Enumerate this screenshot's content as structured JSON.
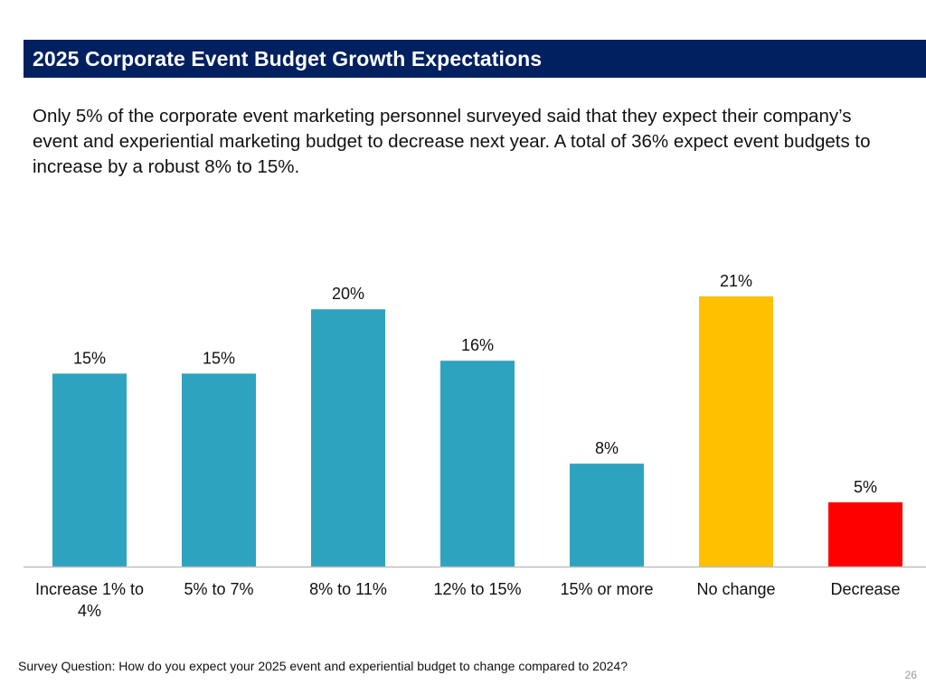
{
  "slide": {
    "title": "2025 Corporate Event Budget Growth Expectations",
    "body": "Only 5% of the corporate event marketing personnel surveyed said that they expect their company’s event and experiential marketing budget to decrease next year. A total of 36% expect event budgets to increase by a robust 8% to 15%.",
    "footnote": "Survey Question: How do you expect your 2025 event and experiential budget to change compared to 2024?",
    "page_number": "26"
  },
  "chart_data": {
    "type": "bar",
    "title": "",
    "xlabel": "",
    "ylabel": "",
    "ylim": [
      0,
      21
    ],
    "grid": false,
    "legend": "none",
    "categories": [
      "Increase 1% to 4%",
      "5% to 7%",
      "8% to 11%",
      "12% to 15%",
      "15% or more",
      "No change",
      "Decrease"
    ],
    "category_lines": [
      [
        "Increase 1% to",
        "4%"
      ],
      [
        "5% to 7%"
      ],
      [
        "8% to 11%"
      ],
      [
        "12% to 15%"
      ],
      [
        "15% or more"
      ],
      [
        "No change"
      ],
      [
        "Decrease"
      ]
    ],
    "values": [
      15,
      15,
      20,
      16,
      8,
      21,
      5
    ],
    "data_labels": [
      "15%",
      "15%",
      "20%",
      "16%",
      "8%",
      "21%",
      "5%"
    ],
    "colors": [
      "#2ea3bf",
      "#2ea3bf",
      "#2ea3bf",
      "#2ea3bf",
      "#2ea3bf",
      "#ffc000",
      "#ff0000"
    ],
    "axis_color": "#bfbfbf"
  }
}
